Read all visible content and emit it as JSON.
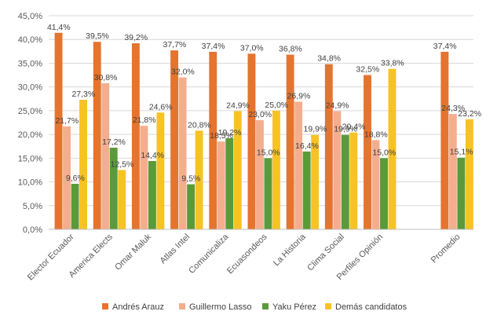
{
  "chart_data": {
    "type": "bar",
    "categories": [
      "Elector Ecuador",
      "America Elects",
      "Omar Maluk",
      "Atlas Intel",
      "Comunicaliza",
      "Ecuasondeos",
      "La Historia",
      "Clima Social",
      "Perfiles Opinión",
      "",
      "Promedio"
    ],
    "series": [
      {
        "name": "Andrés Arauz",
        "color": "#E5742F",
        "values": [
          41.4,
          39.5,
          39.2,
          37.7,
          37.4,
          37.0,
          36.8,
          34.8,
          32.5,
          null,
          37.4
        ],
        "labels": [
          "41,4%",
          "39,5%",
          "39,2%",
          "37,7%",
          "37,4%",
          "37,0%",
          "36,8%",
          "34,8%",
          "32,5%",
          "",
          "37,4%"
        ]
      },
      {
        "name": "Guillermo Lasso",
        "color": "#F4AE8E",
        "values": [
          21.7,
          30.8,
          21.8,
          32.0,
          18.5,
          23.0,
          26.9,
          24.9,
          18.8,
          null,
          24.3
        ],
        "labels": [
          "21,7%",
          "30,8%",
          "21,8%",
          "32,0%",
          "18,5%",
          "23,0%",
          "26,9%",
          "24,9%",
          "18,8%",
          "",
          "24,3%"
        ]
      },
      {
        "name": "Yaku Pérez",
        "color": "#5A9A3A",
        "values": [
          9.6,
          17.2,
          14.4,
          9.5,
          19.2,
          15.0,
          16.4,
          19.9,
          15.0,
          null,
          15.1
        ],
        "labels": [
          "9,6%",
          "17,2%",
          "14,4%",
          "9,5%",
          "19,2%",
          "15,0%",
          "16,4%",
          "19,9%",
          "15,0%",
          "",
          "15,1%"
        ]
      },
      {
        "name": "Demás candidatos",
        "color": "#F7C324",
        "values": [
          27.3,
          12.5,
          24.6,
          20.8,
          24.9,
          25.0,
          19.9,
          20.4,
          33.8,
          null,
          23.2
        ],
        "labels": [
          "27,3%",
          "12,5%",
          "24,6%",
          "20,8%",
          "24,9%",
          "25,0%",
          "19,9%",
          "20,4%",
          "33,8%",
          "",
          "23,2%"
        ]
      }
    ],
    "y_ticks": [
      "0,0%",
      "5,0%",
      "10,0%",
      "15,0%",
      "20,0%",
      "25,0%",
      "30,0%",
      "35,0%",
      "40,0%",
      "45,0%"
    ],
    "ylim": [
      0,
      45
    ],
    "grid": true,
    "legend_position": "bottom"
  }
}
